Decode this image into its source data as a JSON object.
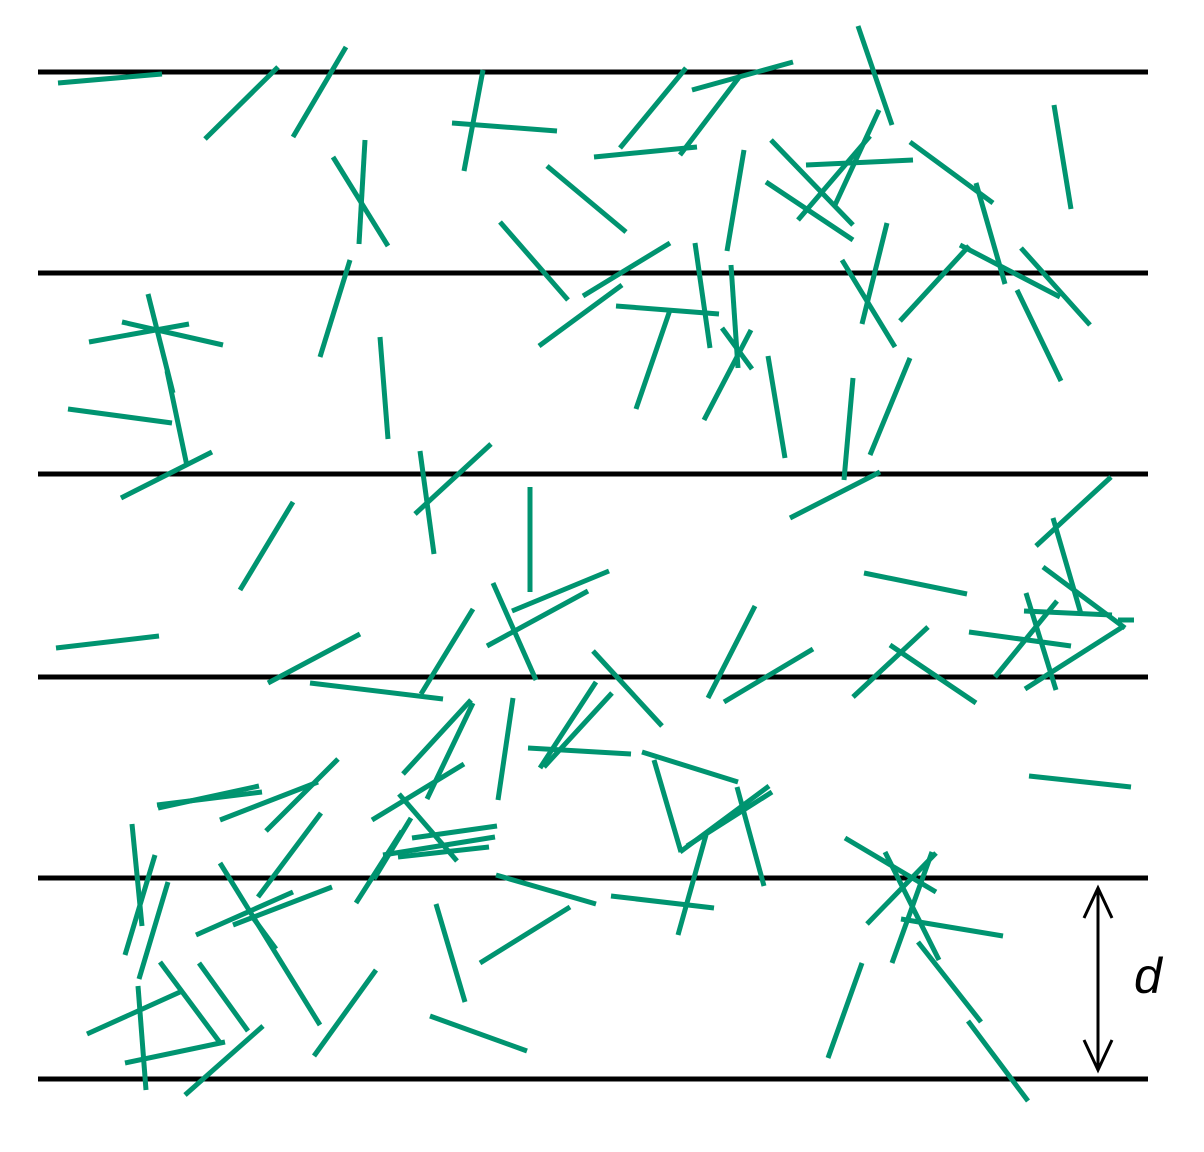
{
  "diagram": {
    "title": "",
    "description": "",
    "spacing_label": "d",
    "line_count": 6,
    "needle_count": 151,
    "colors": {
      "lines": "#000000",
      "needles": "#009470",
      "arrow": "#000000",
      "background": "#ffffff"
    }
  }
}
